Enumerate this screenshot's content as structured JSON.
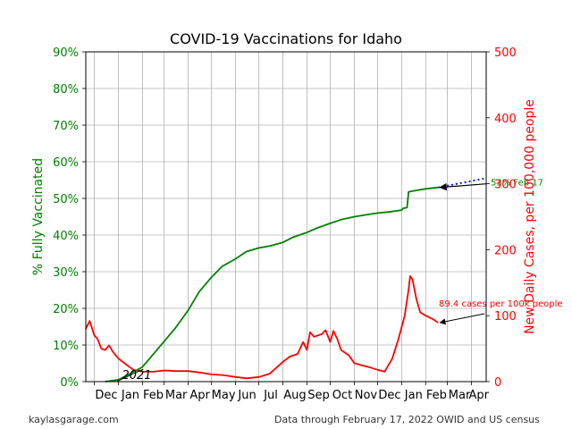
{
  "chart_data": {
    "type": "line",
    "title": "COVID-19 Vaccinations for Idaho",
    "ylabel_left": "% Fully Vaccinated",
    "ylabel_right": "New Daily Cases, per 100,000 people",
    "y_left_ticks": [
      "0%",
      "10%",
      "20%",
      "30%",
      "40%",
      "50%",
      "60%",
      "70%",
      "80%",
      "90%"
    ],
    "y_right_ticks": [
      "0",
      "100",
      "200",
      "300",
      "400",
      "500"
    ],
    "x_ticks": [
      "Dec",
      "Jan",
      "Feb",
      "Mar",
      "Apr",
      "May",
      "Jun",
      "Jul",
      "Aug",
      "Sep",
      "Oct",
      "Nov",
      "Dec",
      "Jan",
      "Feb",
      "Mar",
      "Apr"
    ],
    "x_range": [
      "2020-11-20",
      "2022-04-20"
    ],
    "ylim_left": [
      0,
      90
    ],
    "ylim_right": [
      0,
      500
    ],
    "grid": true,
    "colors": {
      "vaccinated": "#008000",
      "cases": "#ff0000",
      "projection": "#0000ff",
      "arrow": "#000000"
    },
    "series": [
      {
        "name": "% Fully Vaccinated",
        "axis": "left",
        "points": [
          [
            "2020-12-15",
            0
          ],
          [
            "2021-01-01",
            0.5
          ],
          [
            "2021-01-15",
            2
          ],
          [
            "2021-02-01",
            4
          ],
          [
            "2021-02-15",
            7.5
          ],
          [
            "2021-03-01",
            11
          ],
          [
            "2021-03-15",
            14.5
          ],
          [
            "2021-04-01",
            19.5
          ],
          [
            "2021-04-15",
            24.5
          ],
          [
            "2021-05-01",
            28.5
          ],
          [
            "2021-05-15",
            31.5
          ],
          [
            "2021-06-01",
            33.5
          ],
          [
            "2021-06-15",
            35.5
          ],
          [
            "2021-07-01",
            36.5
          ],
          [
            "2021-07-15",
            37
          ],
          [
            "2021-08-01",
            38
          ],
          [
            "2021-08-15",
            39.5
          ],
          [
            "2021-09-01",
            40.7
          ],
          [
            "2021-09-15",
            42
          ],
          [
            "2021-10-01",
            43.2
          ],
          [
            "2021-10-15",
            44.2
          ],
          [
            "2021-11-01",
            45
          ],
          [
            "2021-11-15",
            45.5
          ],
          [
            "2021-12-01",
            46
          ],
          [
            "2021-12-15",
            46.3
          ],
          [
            "2022-01-01",
            46.8
          ],
          [
            "2022-01-03",
            47.3
          ],
          [
            "2022-01-08",
            47.5
          ],
          [
            "2022-01-10",
            51.8
          ],
          [
            "2022-01-20",
            52.2
          ],
          [
            "2022-02-01",
            52.6
          ],
          [
            "2022-02-17",
            53
          ]
        ]
      },
      {
        "name": "New Daily Cases, per 100,000 people",
        "axis": "right",
        "points": [
          [
            "2020-11-20",
            80
          ],
          [
            "2020-11-25",
            92
          ],
          [
            "2020-12-01",
            70
          ],
          [
            "2020-12-05",
            65
          ],
          [
            "2020-12-10",
            50
          ],
          [
            "2020-12-15",
            48
          ],
          [
            "2020-12-20",
            55
          ],
          [
            "2020-12-25",
            45
          ],
          [
            "2021-01-01",
            35
          ],
          [
            "2021-01-10",
            27
          ],
          [
            "2021-01-20",
            18
          ],
          [
            "2021-02-01",
            15
          ],
          [
            "2021-02-15",
            15
          ],
          [
            "2021-03-01",
            17
          ],
          [
            "2021-03-15",
            16
          ],
          [
            "2021-04-01",
            16
          ],
          [
            "2021-04-15",
            14
          ],
          [
            "2021-05-01",
            11
          ],
          [
            "2021-05-15",
            10
          ],
          [
            "2021-06-01",
            7
          ],
          [
            "2021-06-15",
            5
          ],
          [
            "2021-07-01",
            7
          ],
          [
            "2021-07-15",
            12
          ],
          [
            "2021-08-01",
            30
          ],
          [
            "2021-08-10",
            38
          ],
          [
            "2021-08-20",
            42
          ],
          [
            "2021-08-27",
            60
          ],
          [
            "2021-09-01",
            48
          ],
          [
            "2021-09-05",
            75
          ],
          [
            "2021-09-10",
            68
          ],
          [
            "2021-09-20",
            72
          ],
          [
            "2021-09-25",
            78
          ],
          [
            "2021-10-01",
            60
          ],
          [
            "2021-10-05",
            77
          ],
          [
            "2021-10-10",
            65
          ],
          [
            "2021-10-15",
            48
          ],
          [
            "2021-10-25",
            40
          ],
          [
            "2021-11-01",
            28
          ],
          [
            "2021-11-10",
            25
          ],
          [
            "2021-11-20",
            22
          ],
          [
            "2021-12-01",
            18
          ],
          [
            "2021-12-10",
            15
          ],
          [
            "2021-12-15",
            25
          ],
          [
            "2021-12-20",
            35
          ],
          [
            "2021-12-28",
            65
          ],
          [
            "2022-01-05",
            100
          ],
          [
            "2022-01-10",
            140
          ],
          [
            "2022-01-12",
            160
          ],
          [
            "2022-01-15",
            155
          ],
          [
            "2022-01-20",
            125
          ],
          [
            "2022-01-25",
            105
          ],
          [
            "2022-02-01",
            100
          ],
          [
            "2022-02-10",
            95
          ],
          [
            "2022-02-17",
            89.4
          ]
        ]
      },
      {
        "name": "projection",
        "axis": "left",
        "style": "dotted",
        "points": [
          [
            "2022-02-17",
            53
          ],
          [
            "2022-04-20",
            55.5
          ]
        ]
      }
    ],
    "annotations": [
      {
        "text": "2021",
        "at": [
          "2021-01-01",
          0
        ]
      },
      {
        "text": "53% Feb 17",
        "color": "#008000"
      },
      {
        "text": "89.4 cases per 100k people",
        "color": "#ff0000"
      }
    ]
  },
  "footer": {
    "left": "kaylasgarage.com",
    "right": "Data through February 17, 2022 OWID and US census"
  }
}
